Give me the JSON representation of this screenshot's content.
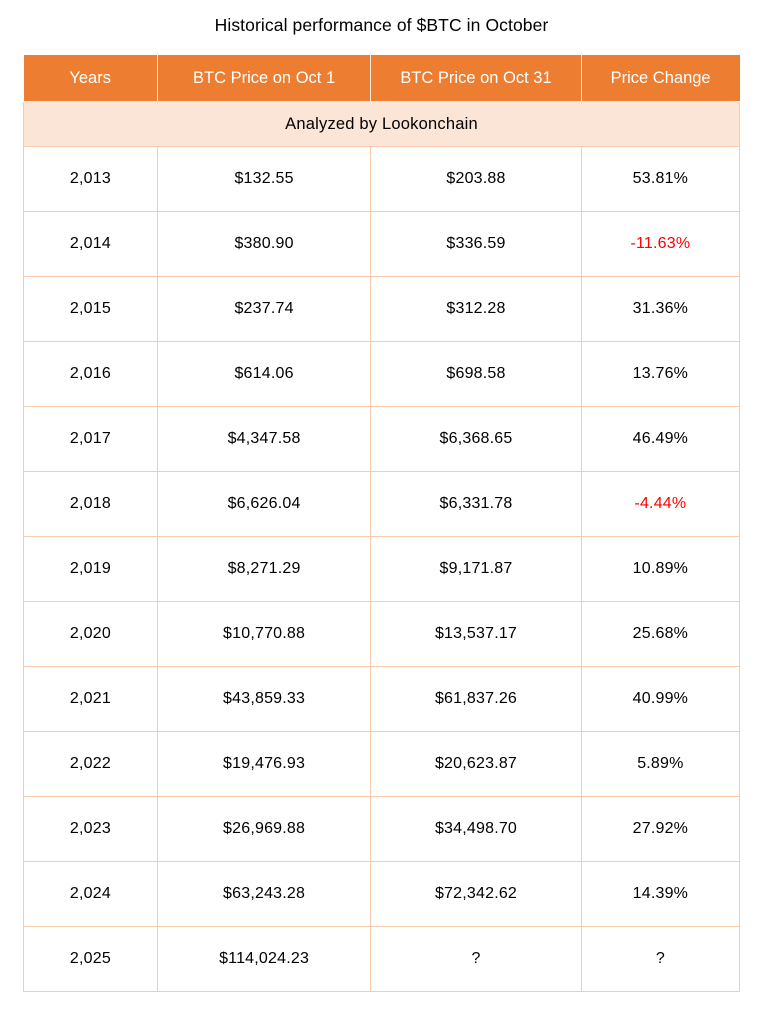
{
  "chart_data": {
    "type": "table",
    "title": "Historical performance of $BTC in October",
    "annotation": "Analyzed by Lookonchain",
    "columns": [
      "Years",
      "BTC Price on Oct 1",
      "BTC Price on Oct 31",
      "Price Change"
    ],
    "rows": [
      [
        "2,013",
        "$132.55",
        "$203.88",
        "53.81%"
      ],
      [
        "2,014",
        "$380.90",
        "$336.59",
        "-11.63%"
      ],
      [
        "2,015",
        "$237.74",
        "$312.28",
        "31.36%"
      ],
      [
        "2,016",
        "$614.06",
        "$698.58",
        "13.76%"
      ],
      [
        "2,017",
        "$4,347.58",
        "$6,368.65",
        "46.49%"
      ],
      [
        "2,018",
        "$6,626.04",
        "$6,331.78",
        "-4.44%"
      ],
      [
        "2,019",
        "$8,271.29",
        "$9,171.87",
        "10.89%"
      ],
      [
        "2,020",
        "$10,770.88",
        "$13,537.17",
        "25.68%"
      ],
      [
        "2,021",
        "$43,859.33",
        "$61,837.26",
        "40.99%"
      ],
      [
        "2,022",
        "$19,476.93",
        "$20,623.87",
        "5.89%"
      ],
      [
        "2,023",
        "$26,969.88",
        "$34,498.70",
        "27.92%"
      ],
      [
        "2,024",
        "$63,243.28",
        "$72,342.62",
        "14.39%"
      ],
      [
        "2,025",
        "$114,024.23",
        "?",
        "?"
      ]
    ],
    "layout": {
      "legend": "none",
      "grid": "all-cell-borders"
    }
  },
  "colors": {
    "header_bg": "#ED7D31",
    "header_text": "#FFFFFF",
    "subheader_bg": "#FBE5D6",
    "border": "#F8CBAD",
    "negative": "#FF0000",
    "text": "#000000",
    "background": "#FFFFFF"
  }
}
